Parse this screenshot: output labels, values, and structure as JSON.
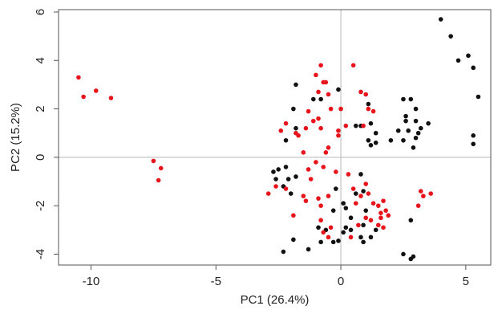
{
  "colors": {
    "frame": "#555555",
    "zero_lines": "#b8b8b8",
    "series_black": "#111111",
    "series_red": "#e8141c"
  },
  "chart_data": {
    "type": "scatter",
    "title": "",
    "xlabel": "PC1 (26.4%)",
    "ylabel": "PC2 (15.2%)",
    "xlim": [
      -11.3,
      6.0
    ],
    "ylim": [
      -4.45,
      6.1
    ],
    "xticks": [
      -10,
      -5,
      0,
      5
    ],
    "yticks": [
      -4,
      -2,
      0,
      2,
      4,
      6
    ],
    "grid": false,
    "reference_lines": {
      "x": 0,
      "y": 0
    },
    "legend": "none",
    "series": [
      {
        "color": "#111111",
        "points": [
          [
            4.0,
            5.7
          ],
          [
            4.4,
            5.0
          ],
          [
            4.7,
            4.0
          ],
          [
            5.1,
            4.2
          ],
          [
            5.3,
            3.7
          ],
          [
            5.5,
            2.5
          ],
          [
            5.3,
            0.9
          ],
          [
            5.3,
            0.55
          ],
          [
            2.5,
            2.4
          ],
          [
            2.8,
            2.4
          ],
          [
            3.0,
            2.0
          ],
          [
            2.6,
            1.7
          ],
          [
            2.6,
            1.5
          ],
          [
            3.0,
            1.5
          ],
          [
            3.2,
            1.2
          ],
          [
            3.5,
            1.4
          ],
          [
            2.7,
            1.1
          ],
          [
            3.1,
            1.0
          ],
          [
            2.3,
            1.1
          ],
          [
            3.0,
            0.8
          ],
          [
            2.0,
            0.7
          ],
          [
            2.5,
            0.7
          ],
          [
            2.9,
            0.4
          ],
          [
            1.1,
            2.2
          ],
          [
            1.2,
            1.4
          ],
          [
            0.8,
            1.3
          ],
          [
            0.6,
            1.3
          ],
          [
            1.4,
            1.0
          ],
          [
            1.1,
            0.7
          ],
          [
            1.2,
            0.5
          ],
          [
            1.4,
            0.6
          ],
          [
            -0.1,
            2.8
          ],
          [
            -1.1,
            2.4
          ],
          [
            -0.8,
            2.4
          ],
          [
            -1.8,
            3.0
          ],
          [
            -1.9,
            2.0
          ],
          [
            -1.8,
            1.2
          ],
          [
            -2.2,
            0.7
          ],
          [
            -2.2,
            -0.4
          ],
          [
            -2.1,
            -0.9
          ],
          [
            -2.3,
            -1.2
          ],
          [
            -2.0,
            -1.5
          ],
          [
            -1.8,
            -0.8
          ],
          [
            -2.6,
            -0.9
          ],
          [
            -2.7,
            -0.6
          ],
          [
            -2.5,
            -0.5
          ],
          [
            -0.2,
            -1.3
          ],
          [
            0.1,
            -1.9
          ],
          [
            -0.3,
            -2.2
          ],
          [
            0.2,
            -2.1
          ],
          [
            0.4,
            -2.5
          ],
          [
            0.6,
            -1.5
          ],
          [
            0.8,
            -0.7
          ],
          [
            0.9,
            -1.4
          ],
          [
            1.0,
            -2.2
          ],
          [
            0.9,
            -2.8
          ],
          [
            0.2,
            -2.9
          ],
          [
            0.4,
            -3.0
          ],
          [
            0.1,
            -3.1
          ],
          [
            -0.9,
            -2.9
          ],
          [
            -0.6,
            -3.0
          ],
          [
            -0.8,
            -3.5
          ],
          [
            -1.3,
            -3.8
          ],
          [
            -0.3,
            -3.5
          ],
          [
            -0.1,
            -3.45
          ],
          [
            0.8,
            -3.3
          ],
          [
            0.9,
            -3.5
          ],
          [
            1.2,
            -3.3
          ],
          [
            1.4,
            -3.0
          ],
          [
            -1.9,
            -3.4
          ],
          [
            -2.3,
            -3.9
          ],
          [
            2.8,
            -2.6
          ],
          [
            2.5,
            -4.0
          ],
          [
            2.8,
            -4.2
          ],
          [
            2.9,
            -4.1
          ]
        ]
      },
      {
        "color": "#e8141c",
        "points": [
          [
            -10.5,
            3.3
          ],
          [
            -10.3,
            2.5
          ],
          [
            -9.8,
            2.75
          ],
          [
            -9.2,
            2.45
          ],
          [
            -7.5,
            -0.15
          ],
          [
            -7.2,
            -0.45
          ],
          [
            -7.3,
            -0.95
          ],
          [
            -0.8,
            3.8
          ],
          [
            -1.0,
            3.4
          ],
          [
            -0.6,
            3.1
          ],
          [
            -0.7,
            3.1
          ],
          [
            -0.9,
            2.7
          ],
          [
            -0.5,
            2.6
          ],
          [
            -0.4,
            2.0
          ],
          [
            -1.3,
            1.9
          ],
          [
            -0.9,
            1.6
          ],
          [
            -1.1,
            1.5
          ],
          [
            -1.4,
            1.2
          ],
          [
            -1.8,
            1.0
          ],
          [
            -1.7,
            0.9
          ],
          [
            -2.4,
            1.1
          ],
          [
            -2.2,
            1.4
          ],
          [
            -1.5,
            0.2
          ],
          [
            -0.8,
            1.2
          ],
          [
            -0.5,
            0.4
          ],
          [
            -0.7,
            -0.4
          ],
          [
            -0.2,
            -0.6
          ],
          [
            0.2,
            1.3
          ],
          [
            -0.1,
            1.1
          ],
          [
            0.0,
            2.0
          ],
          [
            0.5,
            3.8
          ],
          [
            0.8,
            2.7
          ],
          [
            1.0,
            2.6
          ],
          [
            1.1,
            2.0
          ],
          [
            1.3,
            1.9
          ],
          [
            0.9,
            1.3
          ],
          [
            -0.1,
            0.9
          ],
          [
            -0.6,
            0.2
          ],
          [
            -1.0,
            -0.2
          ],
          [
            -1.3,
            -0.5
          ],
          [
            -1.2,
            -0.9
          ],
          [
            -1.5,
            -1.6
          ],
          [
            -2.2,
            -1.3
          ],
          [
            -2.6,
            -1.2
          ],
          [
            -2.9,
            -1.5
          ],
          [
            -1.9,
            -2.4
          ],
          [
            -1.4,
            -1.8
          ],
          [
            -0.9,
            -1.7
          ],
          [
            -0.8,
            -2.0
          ],
          [
            -0.5,
            -1.6
          ],
          [
            -0.8,
            -2.6
          ],
          [
            -0.7,
            -3.1
          ],
          [
            -0.4,
            -2.9
          ],
          [
            -0.5,
            -3.3
          ],
          [
            0.3,
            -0.7
          ],
          [
            0.5,
            -1.3
          ],
          [
            0.6,
            -1.9
          ],
          [
            0.8,
            -1.6
          ],
          [
            1.0,
            -1.1
          ],
          [
            1.1,
            -1.5
          ],
          [
            1.3,
            -1.9
          ],
          [
            1.5,
            -2.0
          ],
          [
            1.7,
            -1.8
          ],
          [
            1.8,
            -2.2
          ],
          [
            1.9,
            -2.4
          ],
          [
            1.6,
            -2.5
          ],
          [
            1.5,
            -2.8
          ],
          [
            1.2,
            -2.6
          ],
          [
            1.0,
            -2.5
          ],
          [
            0.7,
            -2.8
          ],
          [
            1.7,
            -2.9
          ],
          [
            3.2,
            -1.4
          ],
          [
            3.3,
            -1.6
          ],
          [
            3.6,
            -1.5
          ],
          [
            3.1,
            -2.0
          ],
          [
            1.6,
            -2.3
          ],
          [
            0.4,
            -3.3
          ]
        ]
      }
    ]
  }
}
